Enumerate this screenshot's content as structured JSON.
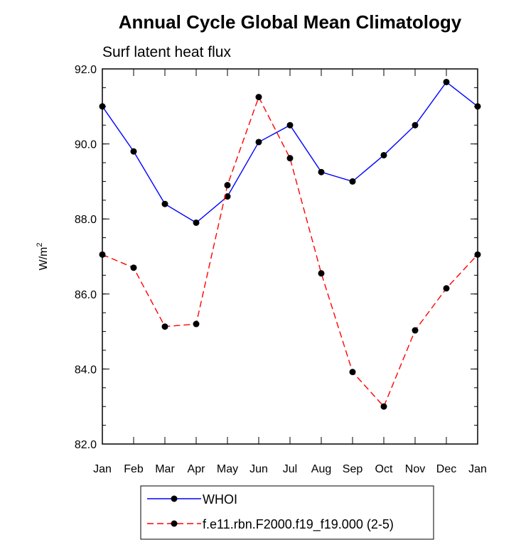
{
  "chart_data": {
    "type": "line",
    "title": "Annual Cycle Global Mean Climatology",
    "subtitle": "Surf latent heat flux",
    "ylabel": "W/m",
    "ylabel_superscript": "2",
    "xlabel": "",
    "categories": [
      "Jan",
      "Feb",
      "Mar",
      "Apr",
      "May",
      "Jun",
      "Jul",
      "Aug",
      "Sep",
      "Oct",
      "Nov",
      "Dec",
      "Jan"
    ],
    "ylim": [
      82.0,
      92.0
    ],
    "yticks": [
      "82.0",
      "84.0",
      "86.0",
      "88.0",
      "90.0",
      "92.0"
    ],
    "grid": false,
    "legend_position": "bottom",
    "series": [
      {
        "name": "WHOI",
        "color": "#0000ff",
        "style": "solid",
        "marker": "circle",
        "values": [
          91.0,
          89.8,
          88.4,
          87.9,
          88.6,
          90.05,
          90.5,
          89.25,
          89.0,
          89.7,
          90.5,
          91.65,
          91.0
        ]
      },
      {
        "name": "f.e11.rbn.F2000.f19_f19.000 (2-5)",
        "color": "#ff0000",
        "style": "dashed",
        "marker": "circle",
        "values": [
          87.05,
          86.7,
          85.13,
          85.2,
          88.9,
          91.25,
          89.62,
          86.55,
          83.92,
          83.0,
          85.03,
          86.15,
          87.05
        ]
      }
    ]
  }
}
